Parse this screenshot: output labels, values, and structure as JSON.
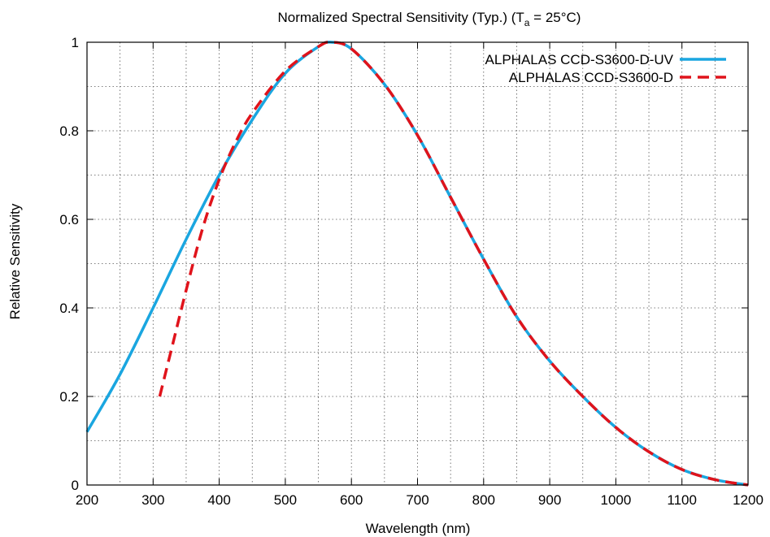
{
  "chart_data": {
    "type": "line",
    "title": "Normalized Spectral Sensitivity (Typ.) (T",
    "title_subscript": "a",
    "title_suffix": " = 25°C)",
    "xlabel": "Wavelength (nm)",
    "ylabel": "Relative Sensitivity",
    "xlim": [
      200,
      1200
    ],
    "ylim": [
      0,
      1
    ],
    "xticks": [
      200,
      300,
      400,
      500,
      600,
      700,
      800,
      900,
      1000,
      1100,
      1200
    ],
    "yticks": [
      0,
      0.2,
      0.4,
      0.6,
      0.8,
      1
    ],
    "ytick_labels": [
      "0",
      "0.2",
      "0.4",
      "0.6",
      "0.8",
      "1"
    ],
    "xgrid_minor": [
      250,
      350,
      450,
      550,
      650,
      750,
      850,
      950,
      1050,
      1150
    ],
    "ygrid_minor": [
      0.1,
      0.3,
      0.5,
      0.7,
      0.9
    ],
    "grid": true,
    "legend_position": "top-right",
    "series": [
      {
        "name": "ALPHALAS CCD-S3600-D-UV",
        "color": "#1aa6e0",
        "style": "solid",
        "x": [
          200,
          250,
          300,
          350,
          400,
          450,
          500,
          550,
          570,
          600,
          650,
          700,
          750,
          800,
          850,
          900,
          950,
          1000,
          1050,
          1100,
          1150,
          1200
        ],
        "y": [
          0.12,
          0.25,
          0.4,
          0.555,
          0.7,
          0.825,
          0.93,
          0.99,
          1.0,
          0.985,
          0.905,
          0.79,
          0.65,
          0.51,
          0.38,
          0.28,
          0.2,
          0.13,
          0.075,
          0.035,
          0.012,
          0.0
        ]
      },
      {
        "name": "ALPHALAS CCD-S3600-D",
        "color": "#e0131b",
        "style": "dashed",
        "x": [
          310,
          330,
          350,
          375,
          400,
          425,
          450,
          500,
          550,
          570,
          600,
          650,
          700,
          750,
          800,
          850,
          900,
          950,
          1000,
          1050,
          1100,
          1150,
          1200
        ],
        "y": [
          0.2,
          0.32,
          0.44,
          0.58,
          0.69,
          0.775,
          0.84,
          0.935,
          0.99,
          1.0,
          0.985,
          0.905,
          0.79,
          0.65,
          0.51,
          0.38,
          0.28,
          0.2,
          0.13,
          0.075,
          0.035,
          0.012,
          0.0
        ]
      }
    ]
  }
}
